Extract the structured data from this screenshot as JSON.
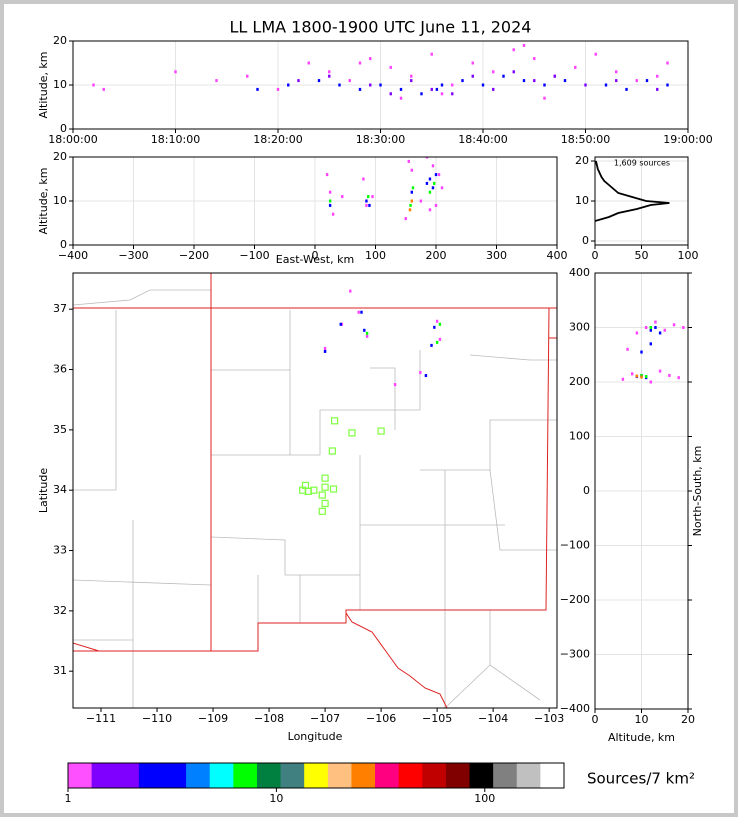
{
  "chart_data": [
    {
      "type": "scatter",
      "title": "LL LMA 1800-1900 UTC June 11, 2024",
      "ylabel": "Altitude, km",
      "xlim": [
        0,
        60
      ],
      "xticks": [
        {
          "value": 0,
          "label": "18:00:00"
        },
        {
          "value": 10,
          "label": "18:10:00"
        },
        {
          "value": 20,
          "label": "18:20:00"
        },
        {
          "value": 30,
          "label": "18:30:00"
        },
        {
          "value": 40,
          "label": "18:40:00"
        },
        {
          "value": 50,
          "label": "18:50:00"
        },
        {
          "value": 60,
          "label": "19:00:00"
        }
      ],
      "ylim": [
        0,
        20
      ],
      "yticks": [
        0,
        10,
        20
      ],
      "grid": true,
      "series": [
        {
          "color": "#ff40ff",
          "x": [
            2,
            3,
            10,
            14,
            17,
            20,
            23,
            25,
            27,
            29,
            31,
            33,
            35,
            37,
            39,
            41,
            43,
            45,
            47,
            49,
            51,
            53,
            55,
            57,
            58,
            44,
            46,
            36,
            32,
            28
          ],
          "y": [
            10,
            9,
            13,
            11,
            12,
            9,
            15,
            13,
            11,
            16,
            14,
            12,
            17,
            10,
            15,
            13,
            18,
            16,
            12,
            14,
            17,
            13,
            11,
            12,
            15,
            19,
            7,
            8,
            7,
            15
          ]
        },
        {
          "color": "#8000ff",
          "x": [
            22,
            25,
            29,
            31,
            33,
            35,
            37,
            39,
            41,
            43,
            45,
            47,
            50,
            53,
            57
          ],
          "y": [
            11,
            12,
            10,
            8,
            11,
            9,
            8,
            12,
            9,
            13,
            11,
            12,
            10,
            11,
            9
          ]
        },
        {
          "color": "#0000ff",
          "x": [
            18,
            21,
            24,
            26,
            28,
            30,
            32,
            34,
            35.5,
            36,
            38,
            40,
            42,
            44,
            46,
            48,
            52,
            54,
            56,
            58
          ],
          "y": [
            9,
            10,
            11,
            10,
            9,
            10,
            9,
            8,
            9,
            10,
            11,
            10,
            12,
            11,
            10,
            11,
            10,
            9,
            11,
            10
          ]
        }
      ]
    },
    {
      "type": "scatter",
      "xlabel": "East-West, km",
      "ylabel": "Altitude, km",
      "xlim": [
        -400,
        400
      ],
      "xticks": [
        {
          "value": -400,
          "label": "−400"
        },
        {
          "value": -300,
          "label": "−300"
        },
        {
          "value": -200,
          "label": "−200"
        },
        {
          "value": -100,
          "label": "−100"
        },
        0,
        100,
        200,
        300,
        400
      ],
      "ylim": [
        0,
        20
      ],
      "yticks": [
        0,
        10,
        20
      ],
      "grid": true,
      "series": [
        {
          "color": "#ff40ff",
          "x": [
            20,
            25,
            30,
            45,
            80,
            85,
            95,
            150,
            155,
            160,
            175,
            185,
            195,
            200,
            205,
            210,
            190
          ],
          "y": [
            16,
            12,
            7,
            11,
            15,
            9,
            11,
            6,
            19,
            17,
            10,
            20,
            18,
            9,
            16,
            13,
            8
          ]
        },
        {
          "color": "#0000ff",
          "x": [
            25,
            85,
            90,
            160,
            185,
            190,
            195,
            200
          ],
          "y": [
            9,
            10,
            9,
            12,
            14,
            15,
            13,
            16
          ]
        },
        {
          "color": "#00ff00",
          "x": [
            25,
            88,
            158,
            162,
            190,
            197
          ],
          "y": [
            10,
            11,
            9,
            13,
            12,
            14
          ]
        },
        {
          "color": "#ff8000",
          "x": [
            157,
            160
          ],
          "y": [
            8,
            10
          ]
        }
      ]
    },
    {
      "type": "line",
      "annotation": "1,609 sources",
      "xlim": [
        0,
        100
      ],
      "xticks": [
        0,
        50,
        100
      ],
      "ylim": [
        -1,
        21
      ],
      "yticks": [
        0,
        10,
        20
      ],
      "grid": true,
      "series": [
        {
          "color": "#000000",
          "x": [
            0,
            15,
            25,
            45,
            60,
            80,
            55,
            40,
            25,
            20,
            15,
            10,
            7,
            5,
            3,
            2,
            1
          ],
          "y": [
            5,
            6,
            7,
            8,
            9,
            9.5,
            10,
            11,
            12,
            13,
            14,
            15,
            16,
            17,
            18,
            19,
            20
          ]
        }
      ]
    },
    {
      "type": "map",
      "xlabel": "Longitude",
      "ylabel": "Latitude",
      "xlim": [
        -111.5,
        -102.86
      ],
      "xticks": [
        {
          "value": -111,
          "label": "−111"
        },
        {
          "value": -110,
          "label": "−110"
        },
        {
          "value": -109,
          "label": "−109"
        },
        {
          "value": -108,
          "label": "−108"
        },
        {
          "value": -107,
          "label": "−107"
        },
        {
          "value": -106,
          "label": "−106"
        },
        {
          "value": -105,
          "label": "−105"
        },
        {
          "value": -104,
          "label": "−104"
        },
        {
          "value": -103,
          "label": "−103"
        }
      ],
      "ylim": [
        30.39,
        37.6
      ],
      "yticks": [
        31,
        32,
        33,
        34,
        35,
        36,
        37
      ],
      "grid": false,
      "stations": {
        "color": "#7fff3f",
        "x": [
          -106.83,
          -106.52,
          -106.0,
          -106.87,
          -107.0,
          -107.0,
          -107.35,
          -107.4,
          -107.2,
          -107.05,
          -106.85,
          -107.0,
          -107.05,
          -107.3
        ],
        "y": [
          35.15,
          34.95,
          34.98,
          34.65,
          34.2,
          34.05,
          34.08,
          34.0,
          34.0,
          33.92,
          34.02,
          33.78,
          33.65,
          33.98
        ]
      },
      "series": [
        {
          "color": "#ff40ff",
          "x": [
            -106.55,
            -106.4,
            -106.25,
            -105.0,
            -104.95,
            -105.3,
            -107.0,
            -106.7,
            -105.75
          ],
          "y": [
            37.3,
            36.95,
            36.55,
            36.8,
            36.5,
            35.95,
            36.35,
            36.75,
            35.75
          ]
        },
        {
          "color": "#0000ff",
          "x": [
            -106.35,
            -106.3,
            -105.05,
            -105.1,
            -105.2,
            -106.72,
            -107.0
          ],
          "y": [
            36.95,
            36.65,
            36.7,
            36.4,
            35.9,
            36.75,
            36.3
          ]
        },
        {
          "color": "#00ff00",
          "x": [
            -106.25,
            -104.95,
            -105.0
          ],
          "y": [
            36.6,
            36.75,
            36.45
          ]
        }
      ]
    },
    {
      "type": "scatter",
      "xlabel": "Altitude, km",
      "ylabel": "North-South, km",
      "xlim": [
        0,
        20
      ],
      "xticks": [
        0,
        10,
        20
      ],
      "ylim": [
        -400,
        400
      ],
      "yticks": [
        {
          "value": -400,
          "label": "−400"
        },
        {
          "value": -300,
          "label": "−300"
        },
        {
          "value": -200,
          "label": "−200"
        },
        {
          "value": -100,
          "label": "−100"
        },
        0,
        100,
        200,
        300,
        400
      ],
      "grid": true,
      "series": [
        {
          "color": "#ff40ff",
          "x": [
            6,
            8,
            10,
            12,
            14,
            16,
            18,
            9,
            11,
            13,
            15,
            17,
            7,
            19
          ],
          "y": [
            205,
            215,
            210,
            200,
            220,
            212,
            208,
            290,
            300,
            310,
            295,
            305,
            260,
            300
          ]
        },
        {
          "color": "#0000ff",
          "x": [
            9,
            10,
            11,
            12,
            13,
            10,
            12,
            14
          ],
          "y": [
            210,
            212,
            208,
            295,
            300,
            255,
            270,
            290
          ]
        },
        {
          "color": "#00ff00",
          "x": [
            10,
            12,
            11
          ],
          "y": [
            212,
            300,
            210
          ]
        },
        {
          "color": "#ff8000",
          "x": [
            9,
            10
          ],
          "y": [
            211,
            209
          ]
        }
      ]
    },
    {
      "type": "colorbar",
      "title": "Sources/7 km²",
      "log": true,
      "xlim": [
        1,
        240
      ],
      "xticks": [
        1,
        10,
        100
      ],
      "colors": [
        "#ff50ff",
        "#8000ff",
        "#8000ff",
        "#0000ff",
        "#0000ff",
        "#0080ff",
        "#00ffff",
        "#00ff00",
        "#008040",
        "#408080",
        "#ffff00",
        "#ffc080",
        "#ff8000",
        "#ff0080",
        "#ff0000",
        "#c00000",
        "#800000",
        "#000000",
        "#808080",
        "#c0c0c0",
        "#ffffff"
      ]
    }
  ]
}
